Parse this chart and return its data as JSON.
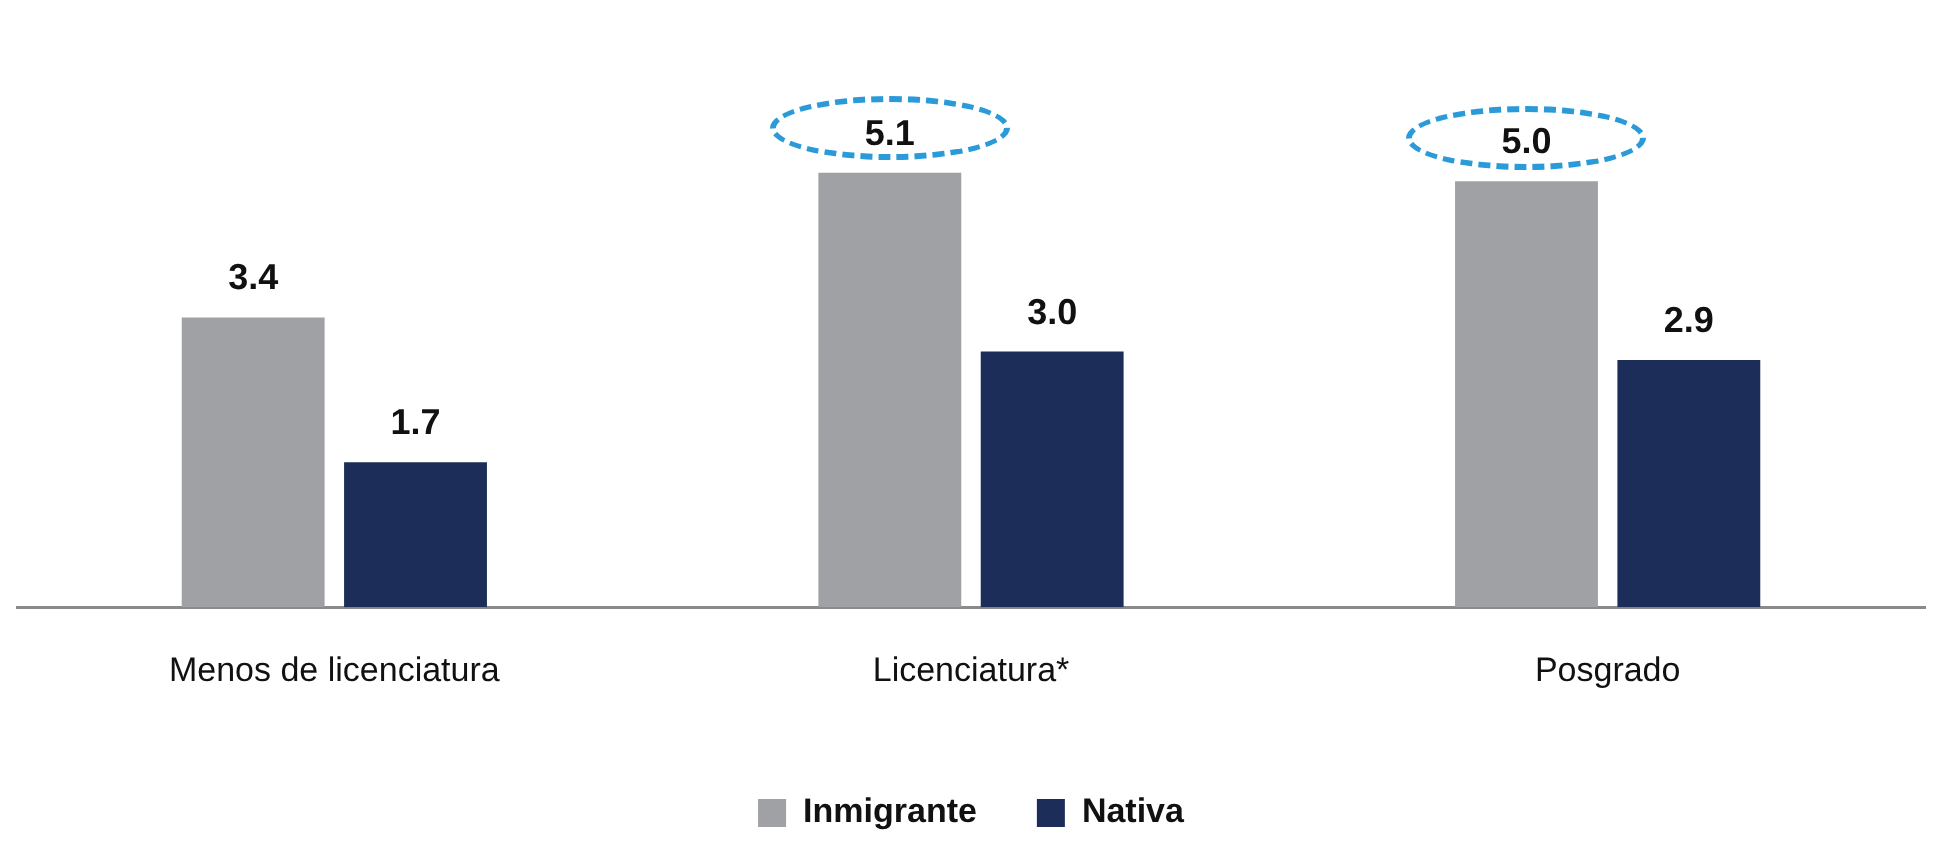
{
  "chart_data": {
    "type": "bar",
    "categories": [
      "Menos de licenciatura",
      "Licenciatura*",
      "Posgrado"
    ],
    "series": [
      {
        "name": "Inmigrante",
        "color": "#a0a1a5",
        "values": [
          3.4,
          5.1,
          5.0
        ],
        "value_labels": [
          "3.4",
          "5.1",
          "5.0"
        ]
      },
      {
        "name": "Nativa",
        "color": "#1b2d58",
        "values": [
          1.7,
          3.0,
          2.9
        ],
        "value_labels": [
          "1.7",
          "3.0",
          "2.9"
        ]
      }
    ],
    "legend": "bottom",
    "grid": false
  }
}
